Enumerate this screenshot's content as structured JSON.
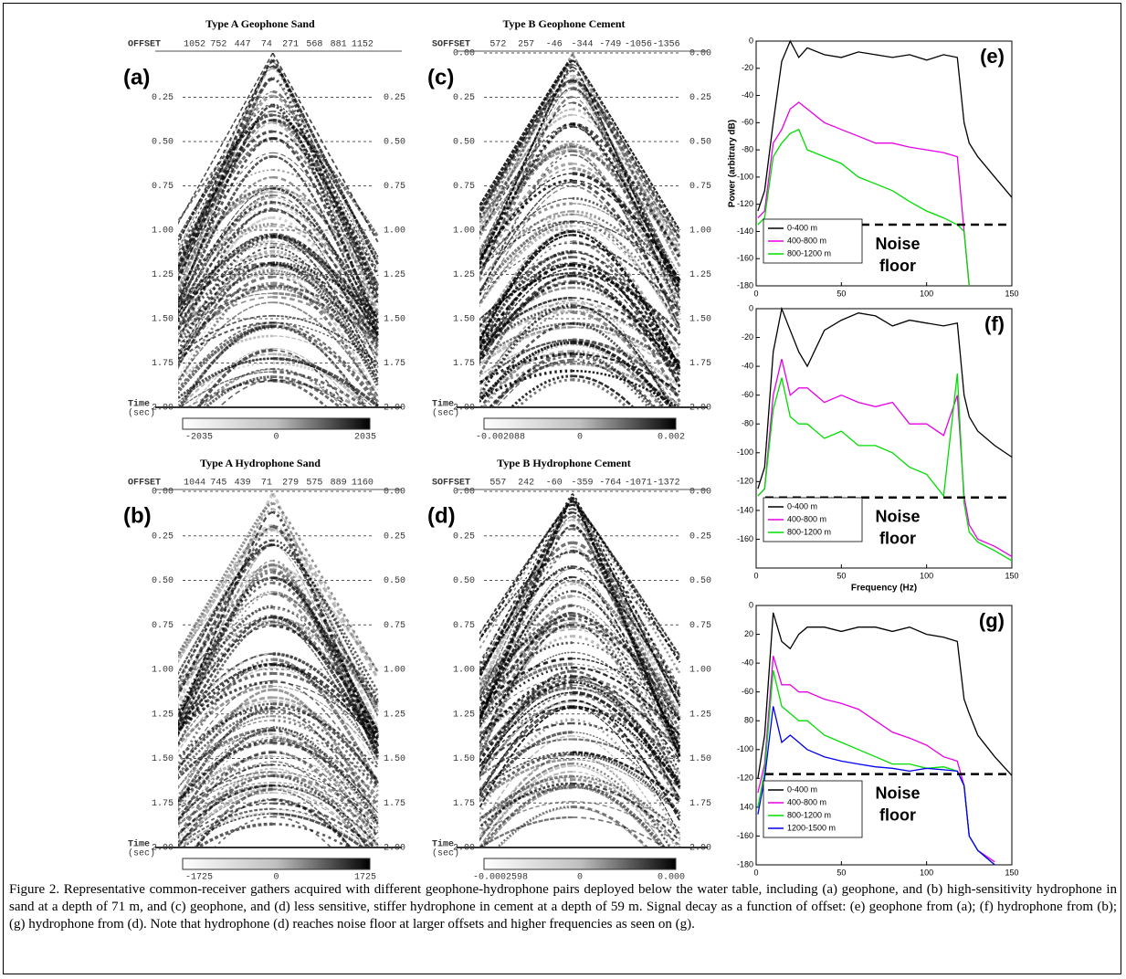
{
  "gathers": [
    {
      "label": "(a)",
      "title": "Type A Geophone Sand",
      "offset_header": "OFFSET",
      "offsets": [
        "1052",
        "752",
        "447",
        "74",
        "271",
        "568",
        "881",
        "1152"
      ],
      "time_ticks": [
        "0.25",
        "0.50",
        "0.75",
        "1.00",
        "1.25",
        "1.50",
        "1.75",
        "2.00"
      ],
      "time_label": [
        "Time",
        "(sec)"
      ],
      "colorbar": [
        "-2035",
        "0",
        "2035"
      ]
    },
    {
      "label": "(b)",
      "title": "Type A Hydrophone Sand",
      "offset_header": "OFFSET",
      "offsets": [
        "1044",
        "745",
        "439",
        "71",
        "279",
        "575",
        "889",
        "1160"
      ],
      "time_ticks": [
        "0.00",
        "0.25",
        "0.50",
        "0.75",
        "1.00",
        "1.25",
        "1.50",
        "1.75",
        "2.00"
      ],
      "time_label": [
        "Time",
        "(sec)"
      ],
      "colorbar": [
        "-1725",
        "0",
        "1725"
      ]
    },
    {
      "label": "(c)",
      "title": "Type B Geophone Cement",
      "offset_header": "SOFFSET",
      "offsets": [
        "572",
        "257",
        "-46",
        "-344",
        "-749",
        "-1056",
        "-1356"
      ],
      "time_ticks": [
        "0.00",
        "0.25",
        "0.50",
        "0.75",
        "1.00",
        "1.25",
        "1.50",
        "1.75",
        "2.00"
      ],
      "time_label": [
        "Time",
        "(sec)"
      ],
      "colorbar": [
        "-0.002088",
        "0",
        "0.002"
      ]
    },
    {
      "label": "(d)",
      "title": "Type B Hydrophone Cement",
      "offset_header": "SOFFSET",
      "offsets": [
        "557",
        "242",
        "-60",
        "-359",
        "-764",
        "-1071",
        "-1372"
      ],
      "time_ticks": [
        "0.00",
        "0.25",
        "0.50",
        "0.75",
        "1.00",
        "1.25",
        "1.50",
        "1.75",
        "2.00"
      ],
      "time_label": [
        "Time",
        "(sec)"
      ],
      "colorbar": [
        "-0.0002598",
        "0",
        "0.000"
      ]
    }
  ],
  "chart_data": [
    {
      "type": "line",
      "label": "(e)",
      "y_label": "Power (arbitrary dB)",
      "x": [
        1,
        5,
        10,
        15,
        20,
        25,
        30,
        40,
        50,
        60,
        70,
        80,
        90,
        100,
        110,
        118,
        122,
        125,
        130,
        140,
        150
      ],
      "series": [
        {
          "name": "0-400 m",
          "color": "#000000",
          "values": [
            -125,
            -110,
            -60,
            -15,
            0,
            -12,
            -5,
            -10,
            -12,
            -8,
            -10,
            -12,
            -10,
            -14,
            -10,
            -12,
            -60,
            -75,
            -85,
            -100,
            -115
          ]
        },
        {
          "name": "400-800 m",
          "color": "#e600e6",
          "values": [
            -130,
            -125,
            -75,
            -65,
            -50,
            -45,
            -50,
            -60,
            -65,
            -70,
            -75,
            -75,
            -78,
            -80,
            -82,
            -85,
            -140,
            -180,
            null,
            null,
            null
          ]
        },
        {
          "name": "800-1200 m",
          "color": "#00dd00",
          "values": [
            -135,
            -130,
            -85,
            -75,
            -68,
            -65,
            -80,
            -85,
            -90,
            -100,
            -105,
            -110,
            -118,
            -125,
            -130,
            -135,
            -140,
            -180,
            null,
            null,
            null
          ]
        }
      ],
      "xlim": [
        0,
        150
      ],
      "xticks": [
        0,
        50,
        100,
        150
      ],
      "ylim": [
        -180,
        0
      ],
      "yticks": [
        -180,
        -160,
        -140,
        -120,
        -100,
        -80,
        -60,
        -40,
        -20,
        0
      ],
      "noise_floor": -135,
      "noise_label": [
        "Noise",
        "floor"
      ],
      "legend": "lower left"
    },
    {
      "type": "line",
      "label": "(f)",
      "x_label": "Frequency (Hz)",
      "x": [
        1,
        5,
        10,
        15,
        20,
        25,
        30,
        40,
        50,
        60,
        70,
        80,
        90,
        100,
        110,
        118,
        122,
        125,
        130,
        140,
        150
      ],
      "series": [
        {
          "name": "0-400 m",
          "color": "#000000",
          "values": [
            -125,
            -110,
            -30,
            0,
            -15,
            -30,
            -40,
            -15,
            -8,
            -3,
            -5,
            -12,
            -8,
            -10,
            -12,
            -10,
            -60,
            -75,
            -85,
            -95,
            -103
          ]
        },
        {
          "name": "400-800 m",
          "color": "#e600e6",
          "values": [
            -130,
            -125,
            -60,
            -35,
            -60,
            -55,
            -55,
            -65,
            -60,
            -65,
            -68,
            -65,
            -80,
            -80,
            -88,
            -60,
            -130,
            -150,
            -160,
            -165,
            -172
          ]
        },
        {
          "name": "800-1200 m",
          "color": "#00dd00",
          "values": [
            -130,
            -125,
            -70,
            -48,
            -75,
            -80,
            -80,
            -90,
            -85,
            -95,
            -95,
            -100,
            -110,
            -115,
            -130,
            -45,
            -135,
            -155,
            -162,
            -168,
            -175
          ]
        }
      ],
      "xlim": [
        0,
        150
      ],
      "xticks": [
        0,
        50,
        100,
        150
      ],
      "ylim": [
        -180,
        0
      ],
      "yticks": [
        -160,
        -140,
        -120,
        -100,
        -80,
        -60,
        -40,
        -20,
        0
      ],
      "noise_floor": -131,
      "noise_label": [
        "Noise",
        "floor"
      ],
      "legend": "lower left"
    },
    {
      "type": "line",
      "label": "(g)",
      "x": [
        1,
        5,
        10,
        15,
        20,
        25,
        30,
        40,
        50,
        60,
        70,
        80,
        90,
        100,
        110,
        118,
        122,
        125,
        130,
        140,
        150
      ],
      "series": [
        {
          "name": "0-400 m",
          "color": "#000000",
          "values": [
            -120,
            -90,
            -5,
            -25,
            -30,
            -20,
            -15,
            -15,
            -18,
            -15,
            -15,
            -18,
            -15,
            -20,
            -22,
            -25,
            -65,
            -75,
            -90,
            -105,
            -118
          ]
        },
        {
          "name": "400-800 m",
          "color": "#e600e6",
          "values": [
            -130,
            -110,
            -35,
            -55,
            -55,
            -60,
            -60,
            -65,
            -68,
            -72,
            -80,
            -88,
            -92,
            -97,
            -105,
            -108,
            -125,
            -160,
            -170,
            -178,
            null
          ]
        },
        {
          "name": "800-1200 m",
          "color": "#00dd00",
          "values": [
            -140,
            -115,
            -45,
            -70,
            -75,
            -80,
            -80,
            -90,
            -95,
            -100,
            -105,
            -110,
            -110,
            -113,
            -112,
            -115,
            -125,
            -160,
            -170,
            -180,
            null
          ]
        },
        {
          "name": "1200-1500 m",
          "color": "#0000ee",
          "values": [
            -145,
            -120,
            -70,
            -95,
            -90,
            -95,
            -100,
            -105,
            -108,
            -110,
            -112,
            -113,
            -115,
            -113,
            -114,
            -115,
            -125,
            -160,
            -170,
            -180,
            null
          ]
        }
      ],
      "xlim": [
        0,
        150
      ],
      "xticks": [
        0,
        50,
        100,
        150
      ],
      "ylim": [
        -180,
        0
      ],
      "yticks": [
        {
          "value": -180,
          "label": "-180"
        },
        {
          "value": -160,
          "label": "-160"
        },
        {
          "value": -140,
          "label": "140"
        },
        {
          "value": -120,
          "label": "-120"
        },
        {
          "value": -100,
          "label": "-100"
        },
        {
          "value": -80,
          "label": "80"
        },
        {
          "value": -60,
          "label": "-60"
        },
        {
          "value": -40,
          "label": "-40"
        },
        {
          "value": -20,
          "label": "20"
        },
        {
          "value": 0,
          "label": "0"
        }
      ],
      "noise_floor": -117,
      "noise_label": [
        "Noise",
        "floor"
      ],
      "legend": "lower left"
    }
  ],
  "caption": "Figure 2. Representative common-receiver gathers acquired with different geophone-hydrophone pairs deployed below the water table, including (a) geophone, and (b) high-sensitivity hydrophone in sand at a depth of 71 m, and (c) geophone, and (d) less sensitive, stiffer hydrophone in cement at a depth of 59 m. Signal decay as a function of offset: (e) geophone from (a); (f) hydrophone from (b); (g) hydrophone from (d). Note that hydrophone (d) reaches noise floor at larger offsets and higher frequencies as seen on (g)."
}
